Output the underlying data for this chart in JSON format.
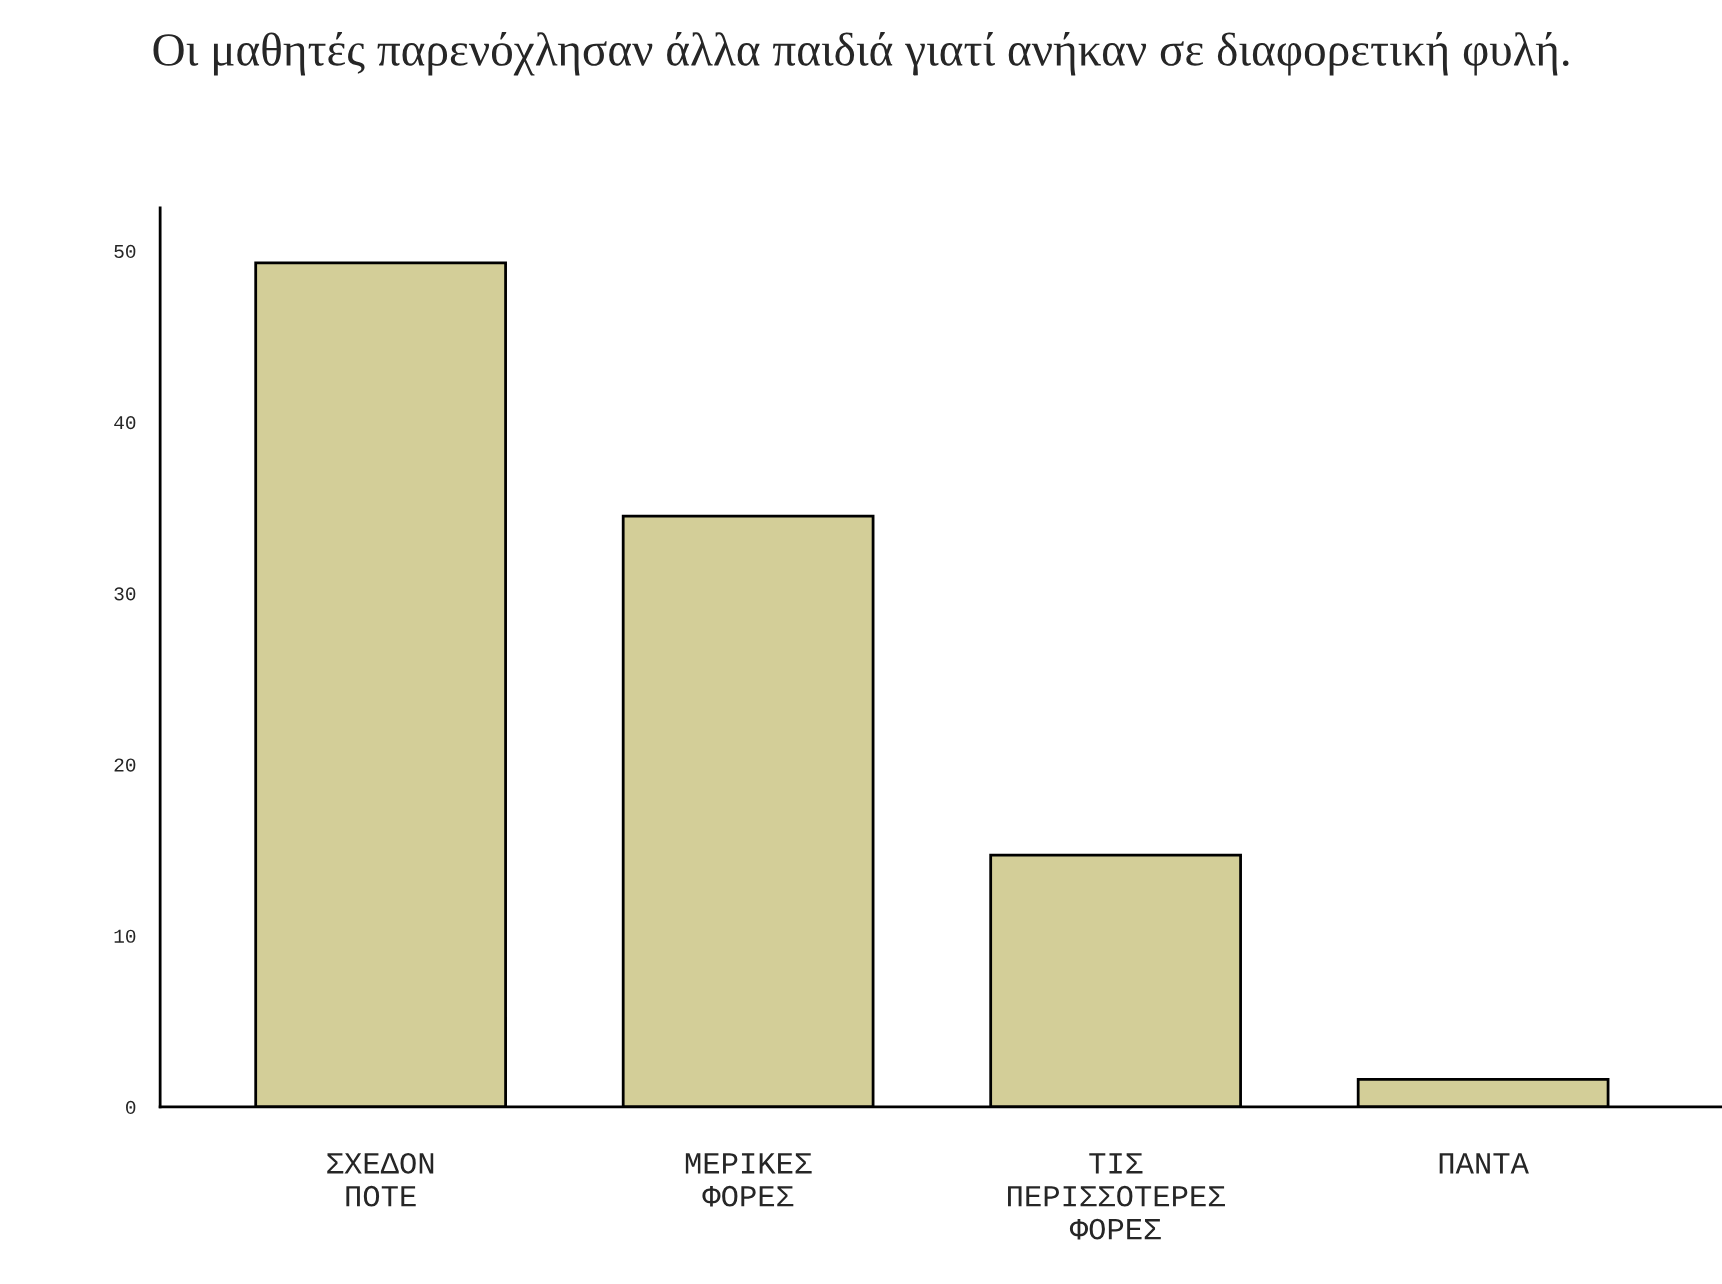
{
  "chart_data": {
    "type": "bar",
    "title": "Οι μαθητές παρενόχλησαν άλλα παιδιά γιατί ανήκαν σε διαφορετική φυλή.",
    "categories": [
      "ΣΧΕΔΟΝ ΠΟΤΕ",
      "ΜΕΡΙΚΕΣ ΦΟΡΕΣ",
      "ΤΙΣ ΠΕΡΙΣΣΟΤΕΡΕΣ ΦΟΡΕΣ",
      "ΠΑΝΤΑ"
    ],
    "values": [
      49.3,
      34.5,
      14.7,
      1.6
    ],
    "color": "#d3ce98",
    "ylim": [
      0,
      52.5
    ],
    "yticks": [
      0,
      10,
      20,
      30,
      40,
      50
    ],
    "grid": false
  }
}
